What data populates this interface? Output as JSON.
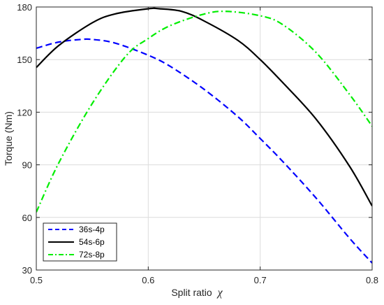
{
  "chart_data": {
    "type": "line",
    "xlabel": "Split ratio",
    "xlabel_symbol": "χ",
    "ylabel": "Torque (Nm)",
    "xlim": [
      0.5,
      0.8
    ],
    "ylim": [
      30,
      180
    ],
    "x_ticks": [
      "0.5",
      "0.6",
      "0.7",
      "0.8"
    ],
    "y_ticks": [
      "30",
      "60",
      "90",
      "120",
      "150",
      "180"
    ],
    "grid": true,
    "legend_position": "bottom-left",
    "series": [
      {
        "name": "36s-4p",
        "color": "#0000ff",
        "style": "dashed",
        "x": [
          0.5,
          0.52,
          0.54,
          0.55,
          0.57,
          0.6,
          0.62,
          0.65,
          0.68,
          0.7,
          0.72,
          0.75,
          0.78,
          0.8
        ],
        "y": [
          156.5,
          160,
          161.5,
          161.5,
          159.5,
          152.5,
          146,
          133,
          117.5,
          105,
          92,
          71,
          48,
          34
        ]
      },
      {
        "name": "54s-6p",
        "color": "#000000",
        "style": "solid",
        "x": [
          0.5,
          0.52,
          0.55,
          0.57,
          0.6,
          0.61,
          0.63,
          0.65,
          0.68,
          0.7,
          0.72,
          0.75,
          0.78,
          0.8
        ],
        "y": [
          145.5,
          158,
          171,
          176,
          179,
          179,
          177.5,
          172,
          161,
          150,
          137,
          116,
          89,
          66.5
        ]
      },
      {
        "name": "72s-8p",
        "color": "#00ee00",
        "style": "dash-dot",
        "x": [
          0.5,
          0.52,
          0.55,
          0.58,
          0.6,
          0.62,
          0.65,
          0.67,
          0.7,
          0.72,
          0.75,
          0.78,
          0.8
        ],
        "y": [
          63,
          91,
          125,
          152,
          162,
          169.5,
          176,
          177.5,
          175,
          170,
          154,
          130,
          112
        ]
      }
    ]
  }
}
